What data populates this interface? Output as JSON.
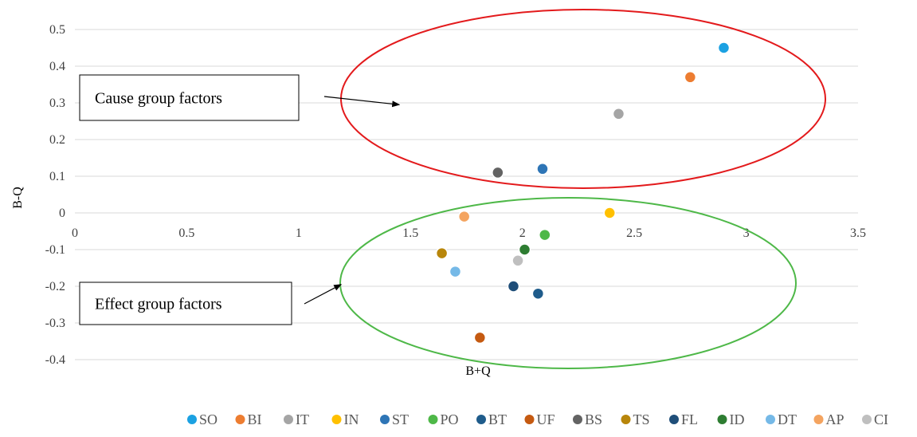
{
  "chart_data": {
    "type": "scatter",
    "xlabel": "B+Q",
    "ylabel": "B-Q",
    "xlim": [
      0,
      3.5
    ],
    "ylim": [
      -0.4,
      0.5
    ],
    "x_ticks": [
      "0",
      "0.5",
      "1",
      "1.5",
      "2",
      "2.5",
      "3",
      "3.5"
    ],
    "y_ticks": [
      "0.5",
      "0.4",
      "0.3",
      "0.2",
      "0.1",
      "0",
      "-0.1",
      "-0.2",
      "-0.3",
      "-0.4"
    ],
    "grid": true,
    "legend_position": "bottom",
    "series": [
      {
        "name": "SO",
        "color": "#1BA1E2",
        "x": 2.9,
        "y": 0.45
      },
      {
        "name": "BI",
        "color": "#ED7D31",
        "x": 2.75,
        "y": 0.37
      },
      {
        "name": "IT",
        "color": "#A5A5A5",
        "x": 2.43,
        "y": 0.27
      },
      {
        "name": "IN",
        "color": "#FFC000",
        "x": 2.39,
        "y": 0.0
      },
      {
        "name": "ST",
        "color": "#2E75B6",
        "x": 2.09,
        "y": 0.12
      },
      {
        "name": "PO",
        "color": "#4EB848",
        "x": 2.1,
        "y": -0.06
      },
      {
        "name": "BT",
        "color": "#1F5C8B",
        "x": 2.07,
        "y": -0.22
      },
      {
        "name": "UF",
        "color": "#C55A11",
        "x": 1.81,
        "y": -0.34
      },
      {
        "name": "BS",
        "color": "#636363",
        "x": 1.89,
        "y": 0.11
      },
      {
        "name": "TS",
        "color": "#B8860B",
        "x": 1.64,
        "y": -0.11
      },
      {
        "name": "FL",
        "color": "#1F4E79",
        "x": 1.96,
        "y": -0.2
      },
      {
        "name": "ID",
        "color": "#2E7D32",
        "x": 2.01,
        "y": -0.1
      },
      {
        "name": "DT",
        "color": "#75B9E7",
        "x": 1.7,
        "y": -0.16
      },
      {
        "name": "AP",
        "color": "#F4A460",
        "x": 1.74,
        "y": -0.01
      },
      {
        "name": "CI",
        "color": "#BFBFBF",
        "x": 1.98,
        "y": -0.13
      }
    ],
    "annotations": [
      {
        "text": "Cause group factors",
        "arrow_to": [
          1.45,
          0.295
        ],
        "ellipse_color": "#E31A1C"
      },
      {
        "text": "Effect group factors",
        "arrow_to": [
          1.19,
          -0.195
        ],
        "ellipse_color": "#4EB848"
      }
    ]
  }
}
